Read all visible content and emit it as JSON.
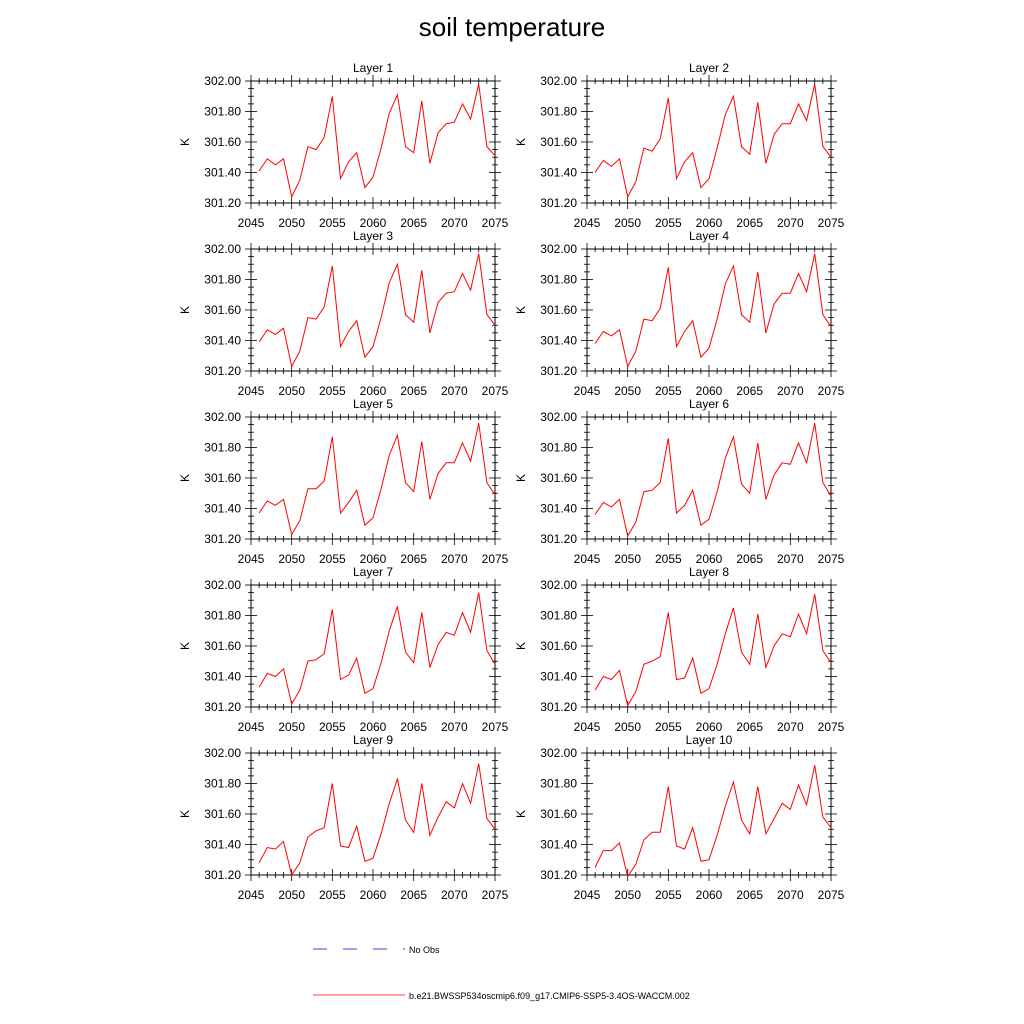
{
  "title": "soil temperature",
  "legend": {
    "items": [
      {
        "label": "No Obs",
        "color": "#0000cc",
        "style": "dashed"
      },
      {
        "label": "b.e21.BWSSP534oscmip6.f09_g17.CMIP6-SSP5-3.4OS-WACCM.002",
        "color": "#ff0000",
        "style": "solid"
      }
    ]
  },
  "chart_data": [
    {
      "type": "line",
      "title": "Layer 1",
      "ylabel": "K",
      "xlim": [
        2045,
        2075
      ],
      "ylim": [
        301.2,
        302.0
      ],
      "xticks": [
        2045,
        2050,
        2055,
        2060,
        2065,
        2070,
        2075
      ],
      "yticks": [
        "301.20",
        "301.40",
        "301.60",
        "301.80",
        "302.00"
      ],
      "x": [
        2046,
        2047,
        2048,
        2049,
        2050,
        2051,
        2052,
        2053,
        2054,
        2055,
        2056,
        2057,
        2058,
        2059,
        2060,
        2061,
        2062,
        2063,
        2064,
        2065,
        2066,
        2067,
        2068,
        2069,
        2070,
        2071,
        2072,
        2073,
        2074,
        2075
      ],
      "series": [
        {
          "name": "b.e21.BWSSP534oscmip6.f09_g17.CMIP6-SSP5-3.4OS-WACCM.002",
          "color": "#ff0000",
          "values": [
            301.41,
            301.49,
            301.45,
            301.49,
            301.24,
            301.35,
            301.57,
            301.55,
            301.63,
            301.9,
            301.36,
            301.47,
            301.53,
            301.3,
            301.37,
            301.56,
            301.79,
            301.91,
            301.57,
            301.53,
            301.87,
            301.46,
            301.66,
            301.72,
            301.73,
            301.85,
            301.75,
            301.98,
            301.57,
            301.51
          ]
        }
      ]
    },
    {
      "type": "line",
      "title": "Layer 2",
      "ylabel": "K",
      "xlim": [
        2045,
        2075
      ],
      "ylim": [
        301.2,
        302.0
      ],
      "xticks": [
        2045,
        2050,
        2055,
        2060,
        2065,
        2070,
        2075
      ],
      "yticks": [
        "301.20",
        "301.40",
        "301.60",
        "301.80",
        "302.00"
      ],
      "x": [
        2046,
        2047,
        2048,
        2049,
        2050,
        2051,
        2052,
        2053,
        2054,
        2055,
        2056,
        2057,
        2058,
        2059,
        2060,
        2061,
        2062,
        2063,
        2064,
        2065,
        2066,
        2067,
        2068,
        2069,
        2070,
        2071,
        2072,
        2073,
        2074,
        2075
      ],
      "series": [
        {
          "name": "b.e21.BWSSP534oscmip6.f09_g17.CMIP6-SSP5-3.4OS-WACCM.002",
          "color": "#ff0000",
          "values": [
            301.4,
            301.48,
            301.44,
            301.49,
            301.24,
            301.34,
            301.56,
            301.54,
            301.62,
            301.89,
            301.36,
            301.47,
            301.53,
            301.3,
            301.36,
            301.56,
            301.78,
            301.9,
            301.57,
            301.52,
            301.86,
            301.46,
            301.65,
            301.72,
            301.72,
            301.85,
            301.74,
            301.98,
            301.57,
            301.5
          ]
        }
      ]
    },
    {
      "type": "line",
      "title": "Layer 3",
      "ylabel": "K",
      "xlim": [
        2045,
        2075
      ],
      "ylim": [
        301.2,
        302.0
      ],
      "xticks": [
        2045,
        2050,
        2055,
        2060,
        2065,
        2070,
        2075
      ],
      "yticks": [
        "301.20",
        "301.40",
        "301.60",
        "301.80",
        "302.00"
      ],
      "x": [
        2046,
        2047,
        2048,
        2049,
        2050,
        2051,
        2052,
        2053,
        2054,
        2055,
        2056,
        2057,
        2058,
        2059,
        2060,
        2061,
        2062,
        2063,
        2064,
        2065,
        2066,
        2067,
        2068,
        2069,
        2070,
        2071,
        2072,
        2073,
        2074,
        2075
      ],
      "series": [
        {
          "name": "b.e21.BWSSP534oscmip6.f09_g17.CMIP6-SSP5-3.4OS-WACCM.002",
          "color": "#ff0000",
          "values": [
            301.39,
            301.47,
            301.44,
            301.48,
            301.23,
            301.33,
            301.55,
            301.54,
            301.62,
            301.89,
            301.36,
            301.46,
            301.53,
            301.29,
            301.36,
            301.55,
            301.78,
            301.9,
            301.57,
            301.52,
            301.86,
            301.45,
            301.65,
            301.71,
            301.72,
            301.84,
            301.73,
            301.97,
            301.57,
            301.5
          ]
        }
      ]
    },
    {
      "type": "line",
      "title": "Layer 4",
      "ylabel": "K",
      "xlim": [
        2045,
        2075
      ],
      "ylim": [
        301.2,
        302.0
      ],
      "xticks": [
        2045,
        2050,
        2055,
        2060,
        2065,
        2070,
        2075
      ],
      "yticks": [
        "301.20",
        "301.40",
        "301.60",
        "301.80",
        "302.00"
      ],
      "x": [
        2046,
        2047,
        2048,
        2049,
        2050,
        2051,
        2052,
        2053,
        2054,
        2055,
        2056,
        2057,
        2058,
        2059,
        2060,
        2061,
        2062,
        2063,
        2064,
        2065,
        2066,
        2067,
        2068,
        2069,
        2070,
        2071,
        2072,
        2073,
        2074,
        2075
      ],
      "series": [
        {
          "name": "b.e21.BWSSP534oscmip6.f09_g17.CMIP6-SSP5-3.4OS-WACCM.002",
          "color": "#ff0000",
          "values": [
            301.38,
            301.46,
            301.43,
            301.47,
            301.23,
            301.33,
            301.54,
            301.53,
            301.61,
            301.88,
            301.36,
            301.46,
            301.53,
            301.29,
            301.35,
            301.54,
            301.77,
            301.89,
            301.57,
            301.52,
            301.85,
            301.45,
            301.64,
            301.71,
            301.71,
            301.84,
            301.72,
            301.97,
            301.57,
            301.49
          ]
        }
      ]
    },
    {
      "type": "line",
      "title": "Layer 5",
      "ylabel": "K",
      "xlim": [
        2045,
        2075
      ],
      "ylim": [
        301.2,
        302.0
      ],
      "xticks": [
        2045,
        2050,
        2055,
        2060,
        2065,
        2070,
        2075
      ],
      "yticks": [
        "301.20",
        "301.40",
        "301.60",
        "301.80",
        "302.00"
      ],
      "x": [
        2046,
        2047,
        2048,
        2049,
        2050,
        2051,
        2052,
        2053,
        2054,
        2055,
        2056,
        2057,
        2058,
        2059,
        2060,
        2061,
        2062,
        2063,
        2064,
        2065,
        2066,
        2067,
        2068,
        2069,
        2070,
        2071,
        2072,
        2073,
        2074,
        2075
      ],
      "series": [
        {
          "name": "b.e21.BWSSP534oscmip6.f09_g17.CMIP6-SSP5-3.4OS-WACCM.002",
          "color": "#ff0000",
          "values": [
            301.37,
            301.45,
            301.42,
            301.46,
            301.23,
            301.32,
            301.53,
            301.53,
            301.58,
            301.87,
            301.37,
            301.44,
            301.52,
            301.29,
            301.34,
            301.53,
            301.75,
            301.88,
            301.57,
            301.51,
            301.84,
            301.46,
            301.63,
            301.7,
            301.7,
            301.83,
            301.71,
            301.96,
            301.57,
            301.49
          ]
        }
      ]
    },
    {
      "type": "line",
      "title": "Layer 6",
      "ylabel": "K",
      "xlim": [
        2045,
        2075
      ],
      "ylim": [
        301.2,
        302.0
      ],
      "xticks": [
        2045,
        2050,
        2055,
        2060,
        2065,
        2070,
        2075
      ],
      "yticks": [
        "301.20",
        "301.40",
        "301.60",
        "301.80",
        "302.00"
      ],
      "x": [
        2046,
        2047,
        2048,
        2049,
        2050,
        2051,
        2052,
        2053,
        2054,
        2055,
        2056,
        2057,
        2058,
        2059,
        2060,
        2061,
        2062,
        2063,
        2064,
        2065,
        2066,
        2067,
        2068,
        2069,
        2070,
        2071,
        2072,
        2073,
        2074,
        2075
      ],
      "series": [
        {
          "name": "b.e21.BWSSP534oscmip6.f09_g17.CMIP6-SSP5-3.4OS-WACCM.002",
          "color": "#ff0000",
          "values": [
            301.36,
            301.44,
            301.41,
            301.46,
            301.22,
            301.31,
            301.51,
            301.52,
            301.57,
            301.86,
            301.37,
            301.42,
            301.52,
            301.29,
            301.33,
            301.51,
            301.73,
            301.87,
            301.56,
            301.5,
            301.83,
            301.46,
            301.62,
            301.7,
            301.69,
            301.83,
            301.7,
            301.96,
            301.57,
            301.48
          ]
        }
      ]
    },
    {
      "type": "line",
      "title": "Layer 7",
      "ylabel": "K",
      "xlim": [
        2045,
        2075
      ],
      "ylim": [
        301.2,
        302.0
      ],
      "xticks": [
        2045,
        2050,
        2055,
        2060,
        2065,
        2070,
        2075
      ],
      "yticks": [
        "301.20",
        "301.40",
        "301.60",
        "301.80",
        "302.00"
      ],
      "x": [
        2046,
        2047,
        2048,
        2049,
        2050,
        2051,
        2052,
        2053,
        2054,
        2055,
        2056,
        2057,
        2058,
        2059,
        2060,
        2061,
        2062,
        2063,
        2064,
        2065,
        2066,
        2067,
        2068,
        2069,
        2070,
        2071,
        2072,
        2073,
        2074,
        2075
      ],
      "series": [
        {
          "name": "b.e21.BWSSP534oscmip6.f09_g17.CMIP6-SSP5-3.4OS-WACCM.002",
          "color": "#ff0000",
          "values": [
            301.33,
            301.42,
            301.4,
            301.45,
            301.22,
            301.31,
            301.5,
            301.51,
            301.55,
            301.84,
            301.38,
            301.41,
            301.52,
            301.29,
            301.32,
            301.49,
            301.7,
            301.86,
            301.56,
            301.49,
            301.82,
            301.46,
            301.61,
            301.69,
            301.67,
            301.82,
            301.69,
            301.95,
            301.57,
            301.48
          ]
        }
      ]
    },
    {
      "type": "line",
      "title": "Layer 8",
      "ylabel": "K",
      "xlim": [
        2045,
        2075
      ],
      "ylim": [
        301.2,
        302.0
      ],
      "xticks": [
        2045,
        2050,
        2055,
        2060,
        2065,
        2070,
        2075
      ],
      "yticks": [
        "301.20",
        "301.40",
        "301.60",
        "301.80",
        "302.00"
      ],
      "x": [
        2046,
        2047,
        2048,
        2049,
        2050,
        2051,
        2052,
        2053,
        2054,
        2055,
        2056,
        2057,
        2058,
        2059,
        2060,
        2061,
        2062,
        2063,
        2064,
        2065,
        2066,
        2067,
        2068,
        2069,
        2070,
        2071,
        2072,
        2073,
        2074,
        2075
      ],
      "series": [
        {
          "name": "b.e21.BWSSP534oscmip6.f09_g17.CMIP6-SSP5-3.4OS-WACCM.002",
          "color": "#ff0000",
          "values": [
            301.31,
            301.4,
            301.38,
            301.44,
            301.21,
            301.3,
            301.48,
            301.5,
            301.53,
            301.82,
            301.38,
            301.39,
            301.52,
            301.29,
            301.32,
            301.48,
            301.68,
            301.85,
            301.56,
            301.48,
            301.81,
            301.46,
            301.6,
            301.68,
            301.66,
            301.81,
            301.68,
            301.94,
            301.57,
            301.49
          ]
        }
      ]
    },
    {
      "type": "line",
      "title": "Layer 9",
      "ylabel": "K",
      "xlim": [
        2045,
        2075
      ],
      "ylim": [
        301.2,
        302.0
      ],
      "xticks": [
        2045,
        2050,
        2055,
        2060,
        2065,
        2070,
        2075
      ],
      "yticks": [
        "301.20",
        "301.40",
        "301.60",
        "301.80",
        "302.00"
      ],
      "x": [
        2046,
        2047,
        2048,
        2049,
        2050,
        2051,
        2052,
        2053,
        2054,
        2055,
        2056,
        2057,
        2058,
        2059,
        2060,
        2061,
        2062,
        2063,
        2064,
        2065,
        2066,
        2067,
        2068,
        2069,
        2070,
        2071,
        2072,
        2073,
        2074,
        2075
      ],
      "series": [
        {
          "name": "b.e21.BWSSP534oscmip6.f09_g17.CMIP6-SSP5-3.4OS-WACCM.002",
          "color": "#ff0000",
          "values": [
            301.28,
            301.38,
            301.37,
            301.42,
            301.2,
            301.28,
            301.45,
            301.49,
            301.51,
            301.8,
            301.39,
            301.38,
            301.52,
            301.29,
            301.31,
            301.47,
            301.67,
            301.83,
            301.56,
            301.48,
            301.8,
            301.46,
            301.58,
            301.68,
            301.64,
            301.8,
            301.67,
            301.93,
            301.57,
            301.5
          ]
        }
      ]
    },
    {
      "type": "line",
      "title": "Layer 10",
      "ylabel": "K",
      "xlim": [
        2045,
        2075
      ],
      "ylim": [
        301.2,
        302.0
      ],
      "xticks": [
        2045,
        2050,
        2055,
        2060,
        2065,
        2070,
        2075
      ],
      "yticks": [
        "301.20",
        "301.40",
        "301.60",
        "301.80",
        "302.00"
      ],
      "x": [
        2046,
        2047,
        2048,
        2049,
        2050,
        2051,
        2052,
        2053,
        2054,
        2055,
        2056,
        2057,
        2058,
        2059,
        2060,
        2061,
        2062,
        2063,
        2064,
        2065,
        2066,
        2067,
        2068,
        2069,
        2070,
        2071,
        2072,
        2073,
        2074,
        2075
      ],
      "series": [
        {
          "name": "b.e21.BWSSP534oscmip6.f09_g17.CMIP6-SSP5-3.4OS-WACCM.002",
          "color": "#ff0000",
          "values": [
            301.25,
            301.36,
            301.36,
            301.41,
            301.19,
            301.27,
            301.43,
            301.48,
            301.48,
            301.78,
            301.39,
            301.37,
            301.51,
            301.29,
            301.3,
            301.46,
            301.65,
            301.81,
            301.56,
            301.47,
            301.78,
            301.47,
            301.57,
            301.67,
            301.63,
            301.79,
            301.66,
            301.92,
            301.58,
            301.51
          ]
        }
      ]
    }
  ]
}
